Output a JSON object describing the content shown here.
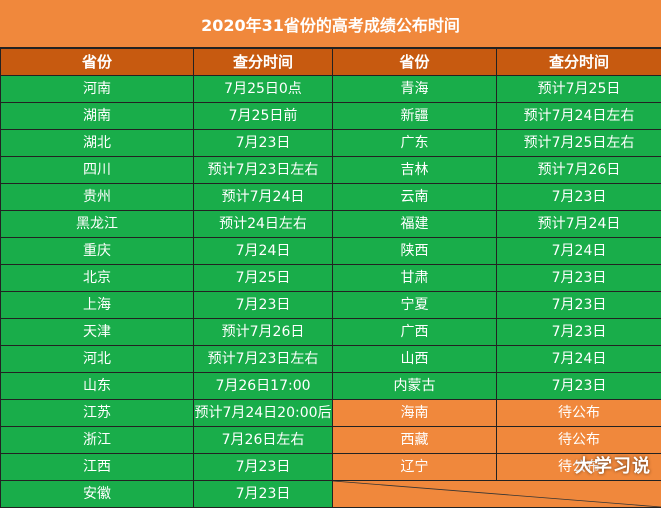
{
  "title": "2020年31省份的高考成绩公布时间",
  "headers": [
    "省份",
    "查分时间",
    "省份",
    "查分时间"
  ],
  "rows": [
    {
      "p1": "河南",
      "t1": "7月25日0点",
      "p2": "青海",
      "t2": "预计7月25日"
    },
    {
      "p1": "湖南",
      "t1": "7月25日前",
      "p2": "新疆",
      "t2": "预计7月24日左右"
    },
    {
      "p1": "湖北",
      "t1": "7月23日",
      "p2": "广东",
      "t2": "预计7月25日左右"
    },
    {
      "p1": "四川",
      "t1": "预计7月23日左右",
      "p2": "吉林",
      "t2": "预计7月26日"
    },
    {
      "p1": "贵州",
      "t1": "预计7月24日",
      "p2": "云南",
      "t2": "7月23日"
    },
    {
      "p1": "黑龙江",
      "t1": "预计24日左右",
      "p2": "福建",
      "t2": "预计7月24日"
    },
    {
      "p1": "重庆",
      "t1": "7月24日",
      "p2": "陕西",
      "t2": "7月24日"
    },
    {
      "p1": "北京",
      "t1": "7月25日",
      "p2": "甘肃",
      "t2": "7月23日"
    },
    {
      "p1": "上海",
      "t1": "7月23日",
      "p2": "宁夏",
      "t2": "7月23日"
    },
    {
      "p1": "天津",
      "t1": "预计7月26日",
      "p2": "广西",
      "t2": "7月23日"
    },
    {
      "p1": "河北",
      "t1": "预计7月23日左右",
      "p2": "山西",
      "t2": "7月24日"
    },
    {
      "p1": "山东",
      "t1": "7月26日17:00",
      "p2": "内蒙古",
      "t2": "7月23日"
    },
    {
      "p1": "江苏",
      "t1": "预计7月24日20:00后",
      "p2": "海南",
      "t2": "待公布"
    },
    {
      "p1": "浙江",
      "t1": "7月26日左右",
      "p2": "西藏",
      "t2": "待公布"
    },
    {
      "p1": "江西",
      "t1": "7月23日",
      "p2": "辽宁",
      "t2": "待公布"
    },
    {
      "p1": "安徽",
      "t1": "7月23日",
      "p2": "",
      "t2": ""
    }
  ],
  "watermark": "大学习说",
  "colors": {
    "header_bg": "#C75A10",
    "title_bg": "#F0883C",
    "cell_green": "#19AD4A",
    "cell_orange": "#F0883C"
  }
}
